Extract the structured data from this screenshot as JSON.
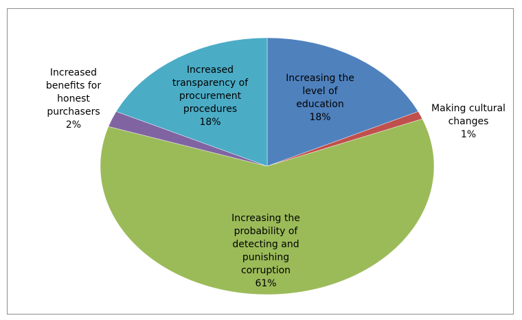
{
  "chart_data": {
    "type": "pie",
    "title": "",
    "start_angle_deg": 0,
    "direction": "clockwise",
    "slices": [
      {
        "label_lines": [
          "Increasing the",
          "level of",
          "education"
        ],
        "value": 18,
        "value_label": "18%",
        "color": "#4F81BD"
      },
      {
        "label_lines": [
          "Making cultural",
          "changes"
        ],
        "value": 1,
        "value_label": "1%",
        "color": "#C0504D"
      },
      {
        "label_lines": [
          "Increasing the",
          "probability of",
          "detecting and",
          "punishing",
          "corruption"
        ],
        "value": 61,
        "value_label": "61%",
        "color": "#9BBB59"
      },
      {
        "label_lines": [
          "Increased",
          "benefits for",
          "honest",
          "purchasers"
        ],
        "value": 2,
        "value_label": "2%",
        "color": "#8064A2"
      },
      {
        "label_lines": [
          "Increased",
          "transparency of",
          "procurement",
          "procedures"
        ],
        "value": 18,
        "value_label": "18%",
        "color": "#4BACC6"
      }
    ]
  }
}
